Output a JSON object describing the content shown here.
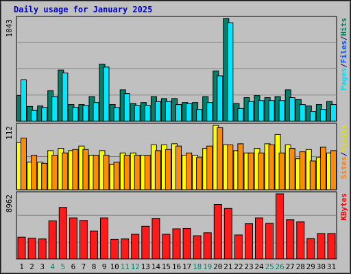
{
  "chart_data": {
    "type": "bar",
    "title": "Daily usage for January 2025",
    "categories": [
      "1",
      "2",
      "3",
      "4",
      "5",
      "6",
      "7",
      "8",
      "9",
      "10",
      "11",
      "12",
      "13",
      "14",
      "15",
      "16",
      "17",
      "18",
      "19",
      "20",
      "21",
      "22",
      "23",
      "24",
      "25",
      "26",
      "27",
      "28",
      "29",
      "30",
      "31"
    ],
    "weekend_days": [
      "4",
      "5",
      "11",
      "12",
      "18",
      "19",
      "25",
      "26"
    ],
    "panels": [
      {
        "id": "hits-files-pages",
        "ymax": 1043,
        "ymax_label": "1043",
        "right_labels": [
          {
            "text": "Pages",
            "color": "#00e0ff"
          },
          {
            "text": "/",
            "color": "#000080"
          },
          {
            "text": "Files",
            "color": "#0055ff"
          },
          {
            "text": "/",
            "color": "#000080"
          },
          {
            "text": "Hits",
            "color": "#008060"
          }
        ],
        "series": [
          {
            "name": "Hits",
            "color": "#00806b",
            "values": [
              260,
              150,
              155,
              310,
              520,
              170,
              170,
              250,
              580,
              170,
              320,
              180,
              190,
              250,
              230,
              230,
              190,
              190,
              250,
              510,
              1043,
              180,
              240,
              260,
              240,
              250,
              320,
              220,
              155,
              170,
              200
            ]
          },
          {
            "name": "Files",
            "color": "#00b8b8",
            "values": [
              0,
              0,
              0,
              0,
              0,
              0,
              0,
              0,
              0,
              0,
              0,
              0,
              0,
              0,
              0,
              0,
              0,
              0,
              0,
              0,
              0,
              0,
              0,
              0,
              0,
              0,
              0,
              0,
              0,
              0,
              0
            ]
          },
          {
            "name": "Pages",
            "color": "#00e8ff",
            "values": [
              420,
              110,
              140,
              250,
              490,
              140,
              160,
              190,
              550,
              140,
              280,
              160,
              160,
              200,
              200,
              170,
              180,
              120,
              190,
              460,
              1000,
              130,
              200,
              210,
              210,
              210,
              240,
              170,
              100,
              120,
              170
            ]
          }
        ]
      },
      {
        "id": "visits-sites",
        "ymax": 112,
        "ymax_label": "112",
        "right_labels": [
          {
            "text": "Sites",
            "color": "#ff8000"
          },
          {
            "text": "/",
            "color": "#000080"
          },
          {
            "text": "Visits",
            "color": "#e0e000"
          }
        ],
        "series": [
          {
            "name": "Visits",
            "color": "#ffff00",
            "values": [
              82,
              48,
              48,
              68,
              72,
              68,
              76,
              60,
              68,
              44,
              64,
              64,
              60,
              78,
              78,
              80,
              60,
              60,
              72,
              112,
              78,
              68,
              64,
              72,
              80,
              96,
              78,
              54,
              70,
              56,
              64
            ]
          },
          {
            "name": "Sites",
            "color": "#ff8c00",
            "values": [
              90,
              60,
              46,
              60,
              64,
              70,
              70,
              60,
              60,
              48,
              60,
              60,
              60,
              68,
              70,
              76,
              64,
              56,
              76,
              108,
              78,
              80,
              64,
              64,
              78,
              64,
              72,
              66,
              50,
              74,
              68
            ]
          }
        ]
      },
      {
        "id": "kbytes",
        "ymax": 8962,
        "ymax_label": "8962",
        "right_labels": [
          {
            "text": "KBytes",
            "color": "#ff0000"
          }
        ],
        "series": [
          {
            "name": "KBytes",
            "color": "#ff1a1a",
            "values": [
              3000,
              2850,
              2750,
              5250,
              7100,
              5650,
              5300,
              3850,
              5650,
              2700,
              2750,
              3400,
              4500,
              5600,
              3400,
              4150,
              4200,
              3200,
              3600,
              7500,
              6950,
              3300,
              4850,
              5650,
              4900,
              8962,
              5400,
              5100,
              2800,
              3500,
              3500
            ]
          }
        ]
      }
    ]
  },
  "colors": {
    "frame_bg": "#c0c0c0",
    "panel_bg": "#c0c0c0",
    "title": "#0000cc",
    "weekend_label": "#00806b",
    "weekday_label": "#000000",
    "bar_edge": "#000000"
  }
}
